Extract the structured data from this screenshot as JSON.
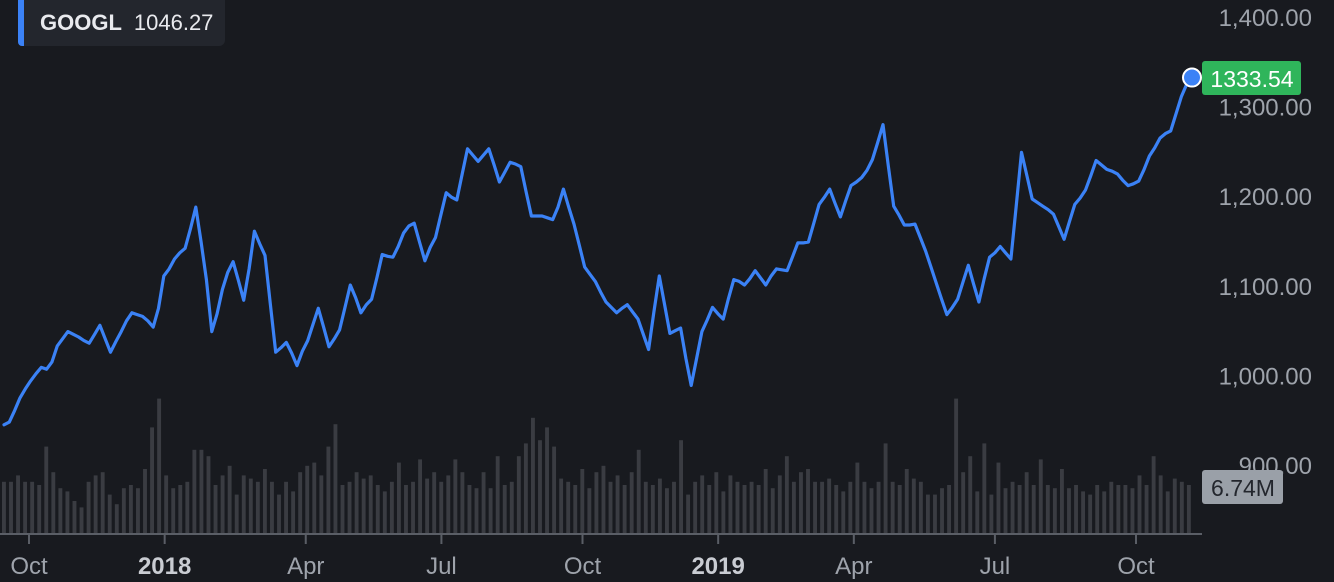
{
  "legend": {
    "symbol": "GOOGL",
    "value": "1046.27"
  },
  "last_price_badge": "1333.54",
  "volume_badge": "6.74M",
  "colors": {
    "background": "#181a1f",
    "line": "#3b82f6",
    "axis": "#9ea3ab",
    "badge_price": "#2fb55b",
    "badge_volume": "#9aa0a8",
    "volume_bar": "#3a3c42"
  },
  "chart_data": {
    "type": "line",
    "title": "",
    "ylabel": "",
    "xlabel": "",
    "ylim": [
      900,
      1400
    ],
    "y_ticks": [
      "1,400.00",
      "1,300.00",
      "1,200.00",
      "1,100.00",
      "1,000.00",
      "900.00"
    ],
    "x_ticks": [
      {
        "label": "Oct",
        "x": 4,
        "bold": false
      },
      {
        "label": "2018",
        "x": 29,
        "bold": true
      },
      {
        "label": "Apr",
        "x": 55,
        "bold": false
      },
      {
        "label": "Jul",
        "x": 80,
        "bold": false
      },
      {
        "label": "Oct",
        "x": 106,
        "bold": false
      },
      {
        "label": "2019",
        "x": 131,
        "bold": true
      },
      {
        "label": "Apr",
        "x": 156,
        "bold": false
      },
      {
        "label": "Jul",
        "x": 182,
        "bold": false
      },
      {
        "label": "Oct",
        "x": 208,
        "bold": false
      }
    ],
    "x_range": [
      0,
      219
    ],
    "series": [
      {
        "name": "GOOGL",
        "points": [
          [
            0,
            946
          ],
          [
            1,
            949
          ],
          [
            2,
            962
          ],
          [
            3,
            976
          ],
          [
            4,
            986
          ],
          [
            5,
            995
          ],
          [
            6,
            1003
          ],
          [
            7,
            1010
          ],
          [
            8,
            1008
          ],
          [
            9,
            1016
          ],
          [
            10,
            1034
          ],
          [
            11,
            1042
          ],
          [
            12,
            1050
          ],
          [
            13,
            1047
          ],
          [
            14,
            1044
          ],
          [
            15,
            1040
          ],
          [
            16,
            1037
          ],
          [
            17,
            1047
          ],
          [
            18,
            1057
          ],
          [
            19,
            1042
          ],
          [
            20,
            1027
          ],
          [
            21,
            1039
          ],
          [
            22,
            1050
          ],
          [
            23,
            1062
          ],
          [
            24,
            1071
          ],
          [
            25,
            1069
          ],
          [
            26,
            1067
          ],
          [
            27,
            1062
          ],
          [
            28,
            1055
          ],
          [
            29,
            1076
          ],
          [
            30,
            1112
          ],
          [
            31,
            1120
          ],
          [
            32,
            1131
          ],
          [
            33,
            1138
          ],
          [
            34,
            1143
          ],
          [
            35,
            1165
          ],
          [
            36,
            1189
          ],
          [
            37,
            1150
          ],
          [
            38,
            1108
          ],
          [
            39,
            1050
          ],
          [
            40,
            1070
          ],
          [
            41,
            1097
          ],
          [
            42,
            1116
          ],
          [
            43,
            1128
          ],
          [
            44,
            1107
          ],
          [
            45,
            1085
          ],
          [
            46,
            1120
          ],
          [
            47,
            1162
          ],
          [
            48,
            1148
          ],
          [
            49,
            1135
          ],
          [
            50,
            1080
          ],
          [
            51,
            1027
          ],
          [
            52,
            1032
          ],
          [
            53,
            1038
          ],
          [
            54,
            1026
          ],
          [
            55,
            1012
          ],
          [
            56,
            1028
          ],
          [
            57,
            1040
          ],
          [
            58,
            1058
          ],
          [
            59,
            1076
          ],
          [
            60,
            1055
          ],
          [
            61,
            1033
          ],
          [
            62,
            1042
          ],
          [
            63,
            1052
          ],
          [
            64,
            1077
          ],
          [
            65,
            1102
          ],
          [
            66,
            1088
          ],
          [
            67,
            1071
          ],
          [
            68,
            1080
          ],
          [
            69,
            1086
          ],
          [
            70,
            1110
          ],
          [
            71,
            1136
          ],
          [
            72,
            1134
          ],
          [
            73,
            1133
          ],
          [
            74,
            1145
          ],
          [
            75,
            1160
          ],
          [
            76,
            1168
          ],
          [
            77,
            1171
          ],
          [
            78,
            1150
          ],
          [
            79,
            1129
          ],
          [
            80,
            1144
          ],
          [
            81,
            1155
          ],
          [
            82,
            1180
          ],
          [
            83,
            1205
          ],
          [
            84,
            1200
          ],
          [
            85,
            1197
          ],
          [
            86,
            1226
          ],
          [
            87,
            1254
          ],
          [
            88,
            1247
          ],
          [
            89,
            1240
          ],
          [
            90,
            1247
          ],
          [
            91,
            1254
          ],
          [
            92,
            1236
          ],
          [
            93,
            1217
          ],
          [
            94,
            1228
          ],
          [
            95,
            1239
          ],
          [
            96,
            1237
          ],
          [
            97,
            1234
          ],
          [
            98,
            1206
          ],
          [
            99,
            1179
          ],
          [
            100,
            1179
          ],
          [
            101,
            1179
          ],
          [
            102,
            1177
          ],
          [
            103,
            1175
          ],
          [
            104,
            1189
          ],
          [
            105,
            1209
          ],
          [
            106,
            1189
          ],
          [
            107,
            1170
          ],
          [
            108,
            1146
          ],
          [
            109,
            1122
          ],
          [
            110,
            1114
          ],
          [
            111,
            1106
          ],
          [
            112,
            1094
          ],
          [
            113,
            1083
          ],
          [
            114,
            1077
          ],
          [
            115,
            1071
          ],
          [
            116,
            1076
          ],
          [
            117,
            1080
          ],
          [
            118,
            1072
          ],
          [
            119,
            1064
          ],
          [
            120,
            1047
          ],
          [
            121,
            1030
          ],
          [
            122,
            1072
          ],
          [
            123,
            1112
          ],
          [
            124,
            1080
          ],
          [
            125,
            1048
          ],
          [
            126,
            1051
          ],
          [
            127,
            1054
          ],
          [
            128,
            1020
          ],
          [
            129,
            990
          ],
          [
            130,
            1020
          ],
          [
            131,
            1050
          ],
          [
            132,
            1063
          ],
          [
            133,
            1077
          ],
          [
            134,
            1070
          ],
          [
            135,
            1064
          ],
          [
            136,
            1087
          ],
          [
            137,
            1108
          ],
          [
            138,
            1106
          ],
          [
            139,
            1102
          ],
          [
            140,
            1109
          ],
          [
            141,
            1118
          ],
          [
            142,
            1110
          ],
          [
            143,
            1102
          ],
          [
            144,
            1112
          ],
          [
            145,
            1120
          ],
          [
            146,
            1119
          ],
          [
            147,
            1118
          ],
          [
            148,
            1133
          ],
          [
            149,
            1149
          ],
          [
            150,
            1149
          ],
          [
            151,
            1150
          ],
          [
            152,
            1171
          ],
          [
            153,
            1192
          ],
          [
            154,
            1200
          ],
          [
            155,
            1209
          ],
          [
            156,
            1193
          ],
          [
            157,
            1178
          ],
          [
            158,
            1196
          ],
          [
            159,
            1213
          ],
          [
            160,
            1217
          ],
          [
            161,
            1222
          ],
          [
            162,
            1230
          ],
          [
            163,
            1242
          ],
          [
            164,
            1261
          ],
          [
            165,
            1281
          ],
          [
            166,
            1235
          ],
          [
            167,
            1190
          ],
          [
            168,
            1180
          ],
          [
            169,
            1169
          ],
          [
            170,
            1169
          ],
          [
            171,
            1170
          ],
          [
            172,
            1155
          ],
          [
            173,
            1140
          ],
          [
            174,
            1122
          ],
          [
            175,
            1104
          ],
          [
            176,
            1086
          ],
          [
            177,
            1069
          ],
          [
            178,
            1077
          ],
          [
            179,
            1086
          ],
          [
            180,
            1105
          ],
          [
            181,
            1124
          ],
          [
            182,
            1103
          ],
          [
            183,
            1083
          ],
          [
            184,
            1109
          ],
          [
            185,
            1133
          ],
          [
            186,
            1138
          ],
          [
            187,
            1145
          ],
          [
            188,
            1138
          ],
          [
            189,
            1131
          ],
          [
            190,
            1190
          ],
          [
            191,
            1250
          ],
          [
            192,
            1224
          ],
          [
            193,
            1198
          ],
          [
            194,
            1194
          ],
          [
            195,
            1190
          ],
          [
            196,
            1186
          ],
          [
            197,
            1181
          ],
          [
            198,
            1167
          ],
          [
            199,
            1153
          ],
          [
            200,
            1173
          ],
          [
            201,
            1192
          ],
          [
            202,
            1199
          ],
          [
            203,
            1208
          ],
          [
            204,
            1224
          ],
          [
            205,
            1241
          ],
          [
            206,
            1236
          ],
          [
            207,
            1231
          ],
          [
            208,
            1229
          ],
          [
            209,
            1226
          ],
          [
            210,
            1219
          ],
          [
            211,
            1213
          ],
          [
            212,
            1215
          ],
          [
            213,
            1218
          ],
          [
            214,
            1231
          ],
          [
            215,
            1246
          ],
          [
            216,
            1255
          ],
          [
            217,
            1266
          ],
          [
            218,
            1271
          ],
          [
            219,
            1274
          ],
          [
            220,
            1293
          ],
          [
            221,
            1312
          ],
          [
            222,
            1326
          ],
          [
            223,
            1333.54
          ]
        ]
      }
    ],
    "volume_series": {
      "name": "Volume",
      "values": [
        1.6,
        1.6,
        1.8,
        1.6,
        1.6,
        1.5,
        2.7,
        1.9,
        1.4,
        1.3,
        1.0,
        0.8,
        1.6,
        1.8,
        1.9,
        1.2,
        0.9,
        1.4,
        1.5,
        1.4,
        2.0,
        3.3,
        4.2,
        1.8,
        1.4,
        1.5,
        1.6,
        2.6,
        2.6,
        2.4,
        1.5,
        1.8,
        2.1,
        1.2,
        1.8,
        1.7,
        1.6,
        2.0,
        1.6,
        1.2,
        1.6,
        1.3,
        1.9,
        2.1,
        2.2,
        1.8,
        2.7,
        3.4,
        1.5,
        1.6,
        1.9,
        1.7,
        1.8,
        1.5,
        1.3,
        1.6,
        2.2,
        1.5,
        1.6,
        2.3,
        1.7,
        1.9,
        1.6,
        1.8,
        2.3,
        1.9,
        1.5,
        1.4,
        1.9,
        1.4,
        2.4,
        1.5,
        1.6,
        2.4,
        2.8,
        3.6,
        2.9,
        3.3,
        2.7,
        1.7,
        1.6,
        1.5,
        2.0,
        1.4,
        1.9,
        2.1,
        1.6,
        1.8,
        1.5,
        1.9,
        2.6,
        1.6,
        1.5,
        1.7,
        1.4,
        1.6,
        2.9,
        1.2,
        1.6,
        1.8,
        1.5,
        1.9,
        1.3,
        1.8,
        1.6,
        1.5,
        1.6,
        1.5,
        2.0,
        1.4,
        1.8,
        2.4,
        1.6,
        1.9,
        2.0,
        1.6,
        1.6,
        1.7,
        1.5,
        1.3,
        1.6,
        2.2,
        1.6,
        1.4,
        1.6,
        2.8,
        1.6,
        1.5,
        2.0,
        1.7,
        1.6,
        1.2,
        1.2,
        1.4,
        1.5,
        4.2,
        1.9,
        2.4,
        1.3,
        2.8,
        1.2,
        2.2,
        1.4,
        1.6,
        1.5,
        1.9,
        1.5,
        2.3,
        1.5,
        1.4,
        2.0,
        1.4,
        1.5,
        1.3,
        1.2,
        1.5,
        1.3,
        1.6,
        1.5,
        1.5,
        1.4,
        1.8,
        1.5,
        2.4,
        1.8,
        1.3,
        1.7,
        1.6,
        1.5
      ]
    }
  }
}
